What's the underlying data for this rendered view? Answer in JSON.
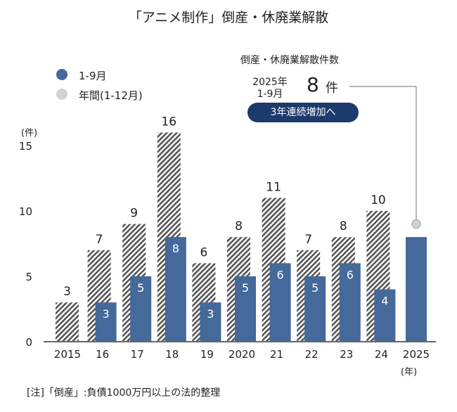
{
  "title": "「アニメ制作」倒産・休廃業解散",
  "legend": {
    "ytd": "1-9月",
    "annual": "年間(1-12月)"
  },
  "annotation": {
    "heading": "倒産・休廃業解散件数",
    "period_year": "2025年",
    "period_months": "1-9月",
    "value": "8",
    "unit": "件",
    "badge": "3年連続増加へ"
  },
  "note": "[注]「倒産」:負債1000万円以上の法的整理",
  "colors": {
    "ytd": "#44699a",
    "annual_hatch": "#555555",
    "badge": "#1c3a6b",
    "marker": "#cfd3d8"
  },
  "chart_data": {
    "type": "bar",
    "ylabel": "(件)",
    "xunit": "(年)",
    "ylim": [
      0,
      15
    ],
    "yticks": [
      0,
      5,
      10,
      15
    ],
    "grid": false,
    "legend": "top-left",
    "categories": [
      "2015",
      "16",
      "17",
      "18",
      "19",
      "2020",
      "21",
      "22",
      "23",
      "24",
      "2025"
    ],
    "series": [
      {
        "name": "年間(1-12月)",
        "style": "hatched",
        "values": [
          3,
          7,
          9,
          16,
          6,
          8,
          11,
          7,
          8,
          10,
          null
        ]
      },
      {
        "name": "1-9月",
        "style": "solid",
        "values": [
          null,
          3,
          5,
          8,
          3,
          5,
          6,
          5,
          6,
          4,
          8
        ]
      }
    ],
    "marker_2025": 9
  }
}
